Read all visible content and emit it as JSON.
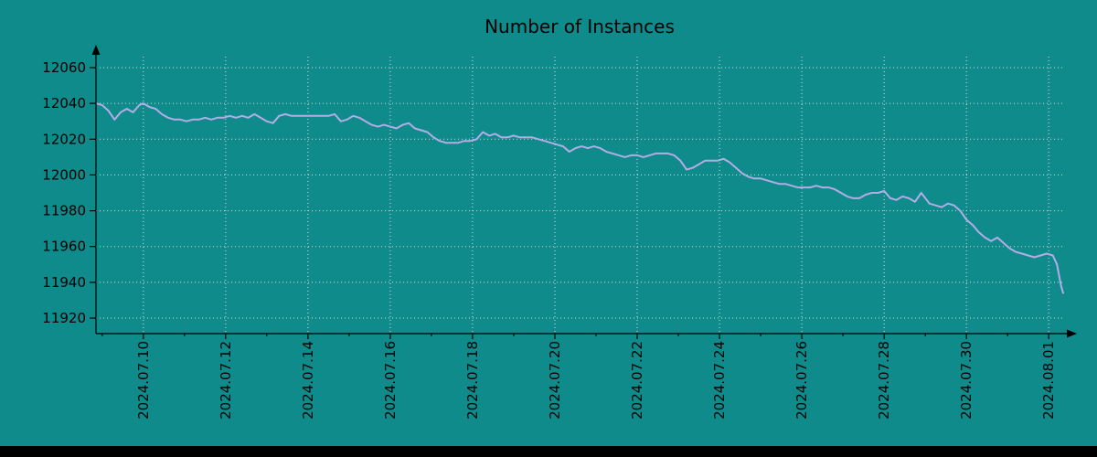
{
  "colors": {
    "background": "#0f8b8b",
    "line": "#b3ade6",
    "grid": "#dcdcdc",
    "axis": "#000000",
    "text": "#000000",
    "bottom_bar": "#000000"
  },
  "chart_data": {
    "type": "line",
    "title": "Number of Instances",
    "xlabel": "",
    "ylabel": "",
    "grid": true,
    "legend": false,
    "xlim": [
      8.85,
      32.35
    ],
    "ylim": [
      11908,
      12072
    ],
    "y_ticks": [
      11920,
      11940,
      11960,
      11980,
      12000,
      12020,
      12040,
      12060
    ],
    "x_ticks": [
      {
        "pos": 10,
        "label": "2024.07.10"
      },
      {
        "pos": 12,
        "label": "2024.07.12"
      },
      {
        "pos": 14,
        "label": "2024.07.14"
      },
      {
        "pos": 16,
        "label": "2024.07.16"
      },
      {
        "pos": 18,
        "label": "2024.07.18"
      },
      {
        "pos": 20,
        "label": "2024.07.20"
      },
      {
        "pos": 22,
        "label": "2024.07.22"
      },
      {
        "pos": 24,
        "label": "2024.07.24"
      },
      {
        "pos": 26,
        "label": "2024.07.26"
      },
      {
        "pos": 28,
        "label": "2024.07.28"
      },
      {
        "pos": 30,
        "label": "2024.07.30"
      },
      {
        "pos": 32,
        "label": "2024.08.01"
      }
    ],
    "x_unit": "day-of-July-2024 (32 = 2024.08.01)",
    "series_name": "Number of Instances",
    "points": [
      [
        8.85,
        12040
      ],
      [
        9,
        12039
      ],
      [
        9.15,
        12036
      ],
      [
        9.3,
        12031
      ],
      [
        9.45,
        12035
      ],
      [
        9.6,
        12037
      ],
      [
        9.75,
        12035
      ],
      [
        9.9,
        12039
      ],
      [
        10,
        12040
      ],
      [
        10.15,
        12038
      ],
      [
        10.3,
        12037
      ],
      [
        10.45,
        12034
      ],
      [
        10.6,
        12032
      ],
      [
        10.75,
        12031
      ],
      [
        10.9,
        12031
      ],
      [
        11.05,
        12030
      ],
      [
        11.2,
        12031
      ],
      [
        11.35,
        12031
      ],
      [
        11.5,
        12032
      ],
      [
        11.65,
        12031
      ],
      [
        11.8,
        12032
      ],
      [
        11.95,
        12032
      ],
      [
        12.1,
        12033
      ],
      [
        12.25,
        12032
      ],
      [
        12.4,
        12033
      ],
      [
        12.55,
        12032
      ],
      [
        12.7,
        12034
      ],
      [
        12.85,
        12032
      ],
      [
        13,
        12030
      ],
      [
        13.15,
        12029
      ],
      [
        13.3,
        12033
      ],
      [
        13.45,
        12034
      ],
      [
        13.6,
        12033
      ],
      [
        13.75,
        12033
      ],
      [
        13.9,
        12033
      ],
      [
        14.05,
        12033
      ],
      [
        14.2,
        12033
      ],
      [
        14.35,
        12033
      ],
      [
        14.5,
        12033
      ],
      [
        14.65,
        12034
      ],
      [
        14.8,
        12030
      ],
      [
        14.95,
        12031
      ],
      [
        15.1,
        12033
      ],
      [
        15.25,
        12032
      ],
      [
        15.4,
        12030
      ],
      [
        15.55,
        12028
      ],
      [
        15.7,
        12027
      ],
      [
        15.85,
        12028
      ],
      [
        16,
        12027
      ],
      [
        16.15,
        12026
      ],
      [
        16.3,
        12028
      ],
      [
        16.45,
        12029
      ],
      [
        16.6,
        12026
      ],
      [
        16.75,
        12025
      ],
      [
        16.9,
        12024
      ],
      [
        17.05,
        12021
      ],
      [
        17.2,
        12019
      ],
      [
        17.35,
        12018
      ],
      [
        17.5,
        12018
      ],
      [
        17.65,
        12018
      ],
      [
        17.8,
        12019
      ],
      [
        17.95,
        12019
      ],
      [
        18.1,
        12020
      ],
      [
        18.25,
        12024
      ],
      [
        18.4,
        12022
      ],
      [
        18.55,
        12023
      ],
      [
        18.7,
        12021
      ],
      [
        18.85,
        12021
      ],
      [
        19,
        12022
      ],
      [
        19.15,
        12021
      ],
      [
        19.3,
        12021
      ],
      [
        19.45,
        12021
      ],
      [
        19.6,
        12020
      ],
      [
        19.75,
        12019
      ],
      [
        19.9,
        12018
      ],
      [
        20.05,
        12017
      ],
      [
        20.2,
        12016
      ],
      [
        20.35,
        12013
      ],
      [
        20.5,
        12015
      ],
      [
        20.65,
        12016
      ],
      [
        20.8,
        12015
      ],
      [
        20.95,
        12016
      ],
      [
        21.1,
        12015
      ],
      [
        21.25,
        12013
      ],
      [
        21.4,
        12012
      ],
      [
        21.55,
        12011
      ],
      [
        21.7,
        12010
      ],
      [
        21.85,
        12011
      ],
      [
        22,
        12011
      ],
      [
        22.15,
        12010
      ],
      [
        22.3,
        12011
      ],
      [
        22.45,
        12012
      ],
      [
        22.6,
        12012
      ],
      [
        22.75,
        12012
      ],
      [
        22.9,
        12011
      ],
      [
        23.05,
        12008
      ],
      [
        23.2,
        12003
      ],
      [
        23.35,
        12004
      ],
      [
        23.5,
        12006
      ],
      [
        23.65,
        12008
      ],
      [
        23.8,
        12008
      ],
      [
        23.95,
        12008
      ],
      [
        24.1,
        12009
      ],
      [
        24.25,
        12007
      ],
      [
        24.4,
        12004
      ],
      [
        24.55,
        12001
      ],
      [
        24.7,
        11999
      ],
      [
        24.85,
        11998
      ],
      [
        25,
        11998
      ],
      [
        25.15,
        11997
      ],
      [
        25.3,
        11996
      ],
      [
        25.45,
        11995
      ],
      [
        25.6,
        11995
      ],
      [
        25.75,
        11994
      ],
      [
        25.9,
        11993
      ],
      [
        26.05,
        11993
      ],
      [
        26.2,
        11993
      ],
      [
        26.35,
        11994
      ],
      [
        26.5,
        11993
      ],
      [
        26.65,
        11993
      ],
      [
        26.8,
        11992
      ],
      [
        26.95,
        11990
      ],
      [
        27.1,
        11988
      ],
      [
        27.25,
        11987
      ],
      [
        27.4,
        11987
      ],
      [
        27.55,
        11989
      ],
      [
        27.7,
        11990
      ],
      [
        27.85,
        11990
      ],
      [
        28,
        11991
      ],
      [
        28.15,
        11987
      ],
      [
        28.3,
        11986
      ],
      [
        28.45,
        11988
      ],
      [
        28.6,
        11987
      ],
      [
        28.75,
        11985
      ],
      [
        28.9,
        11990
      ],
      [
        29,
        11987
      ],
      [
        29.1,
        11984
      ],
      [
        29.25,
        11983
      ],
      [
        29.4,
        11982
      ],
      [
        29.55,
        11984
      ],
      [
        29.7,
        11983
      ],
      [
        29.85,
        11980
      ],
      [
        30,
        11975
      ],
      [
        30.15,
        11972
      ],
      [
        30.3,
        11968
      ],
      [
        30.45,
        11965
      ],
      [
        30.6,
        11963
      ],
      [
        30.75,
        11965
      ],
      [
        30.9,
        11962
      ],
      [
        31.05,
        11959
      ],
      [
        31.2,
        11957
      ],
      [
        31.35,
        11956
      ],
      [
        31.5,
        11955
      ],
      [
        31.65,
        11954
      ],
      [
        31.8,
        11955
      ],
      [
        31.95,
        11956
      ],
      [
        32.1,
        11955
      ],
      [
        32.2,
        11950
      ],
      [
        32.3,
        11938
      ],
      [
        32.35,
        11934
      ]
    ]
  }
}
